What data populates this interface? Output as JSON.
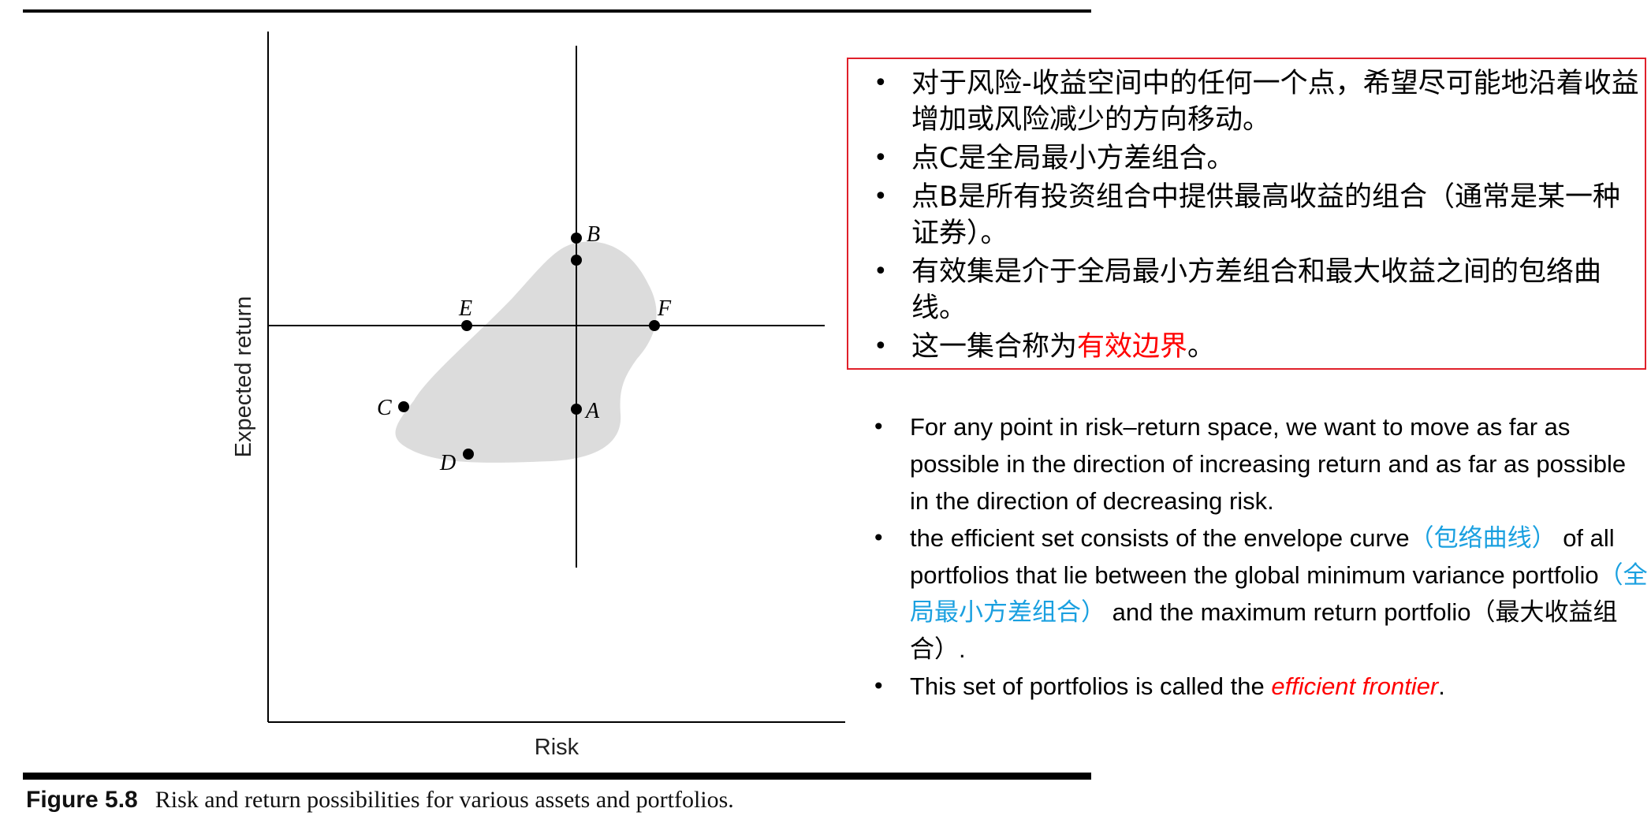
{
  "figure": {
    "ylabel": "Expected return",
    "xlabel": "Risk",
    "points": [
      {
        "label": "A"
      },
      {
        "label": "B"
      },
      {
        "label": "C"
      },
      {
        "label": "D"
      },
      {
        "label": "E"
      },
      {
        "label": "F"
      }
    ],
    "colors": {
      "region": "#dcdcdc",
      "line": "#000000"
    }
  },
  "caption": {
    "label": "Figure 5.8",
    "text": "Risk and return possibilities for various assets and portfolios."
  },
  "zh_notes": {
    "items": [
      {
        "text": "对于风险-收益空间中的任何一个点，希望尽可能地沿着收益增加或风险减少的方向移动。"
      },
      {
        "text": "点C是全局最小方差组合。"
      },
      {
        "text": "点B是所有投资组合中提供最高收益的组合（通常是某一种证券）。"
      },
      {
        "text": "有效集是介于全局最小方差组合和最大收益之间的包络曲线。"
      },
      {
        "prefix": "这一集合称为",
        "highlight": "有效边界",
        "suffix": "。"
      }
    ],
    "border_color": "#e0202a"
  },
  "en_notes": {
    "item1": "For any point in risk–return space, we want to move as far as possible in the direction of increasing return and as far as possible in the direction of decreasing risk.",
    "item2": {
      "a": "the efficient set consists of the envelope curve",
      "b": "（包络曲线）",
      "c": " of all portfolios that lie between the global minimum variance portfolio",
      "d": "（全局最小方差组合）",
      "e": " and the maximum return portfolio（最大收益组合）."
    },
    "item3": {
      "prefix": "This set of portfolios is called the ",
      "highlight": "efficient frontier",
      "suffix": "."
    },
    "colors": {
      "cn_gloss": "#1aa0e0",
      "highlight": "#ff0000"
    }
  }
}
